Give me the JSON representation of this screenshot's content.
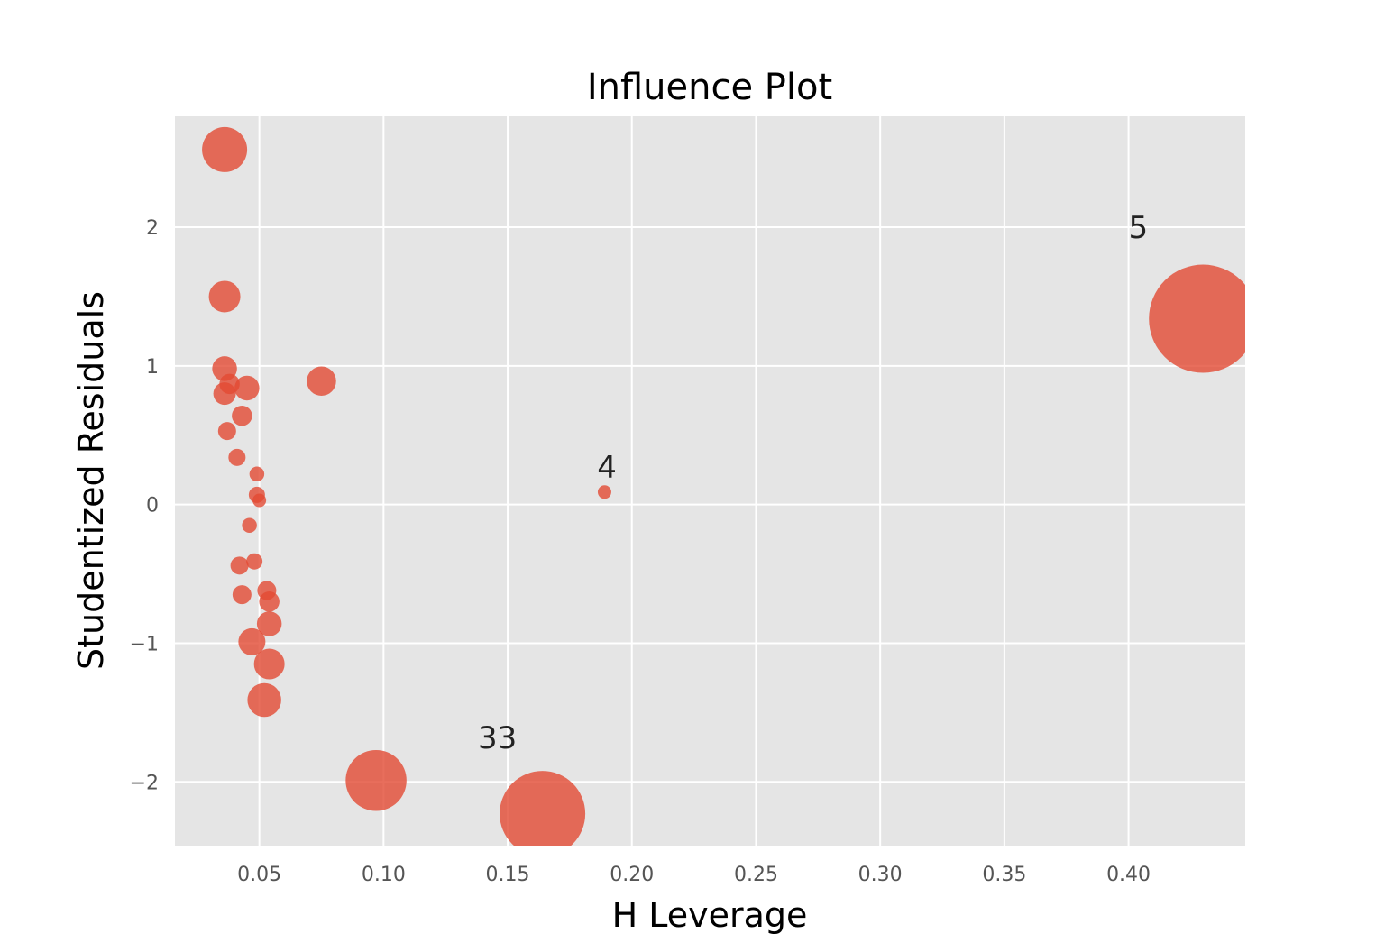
{
  "chart_data": {
    "type": "scatter",
    "title": "Influence Plot",
    "xlabel": "H Leverage",
    "ylabel": "Studentized Residuals",
    "xlim": [
      0.016,
      0.447
    ],
    "ylim": [
      -2.46,
      2.8
    ],
    "xticks": [
      0.05,
      0.1,
      0.15,
      0.2,
      0.25,
      0.3,
      0.35,
      0.4
    ],
    "xtick_labels": [
      "0.05",
      "0.10",
      "0.15",
      "0.20",
      "0.25",
      "0.30",
      "0.35",
      "0.40"
    ],
    "yticks": [
      -2,
      -1,
      0,
      1,
      2
    ],
    "ytick_labels": [
      "−2",
      "−1",
      "0",
      "1",
      "2"
    ],
    "grid": true,
    "colors": {
      "background": "#E5E5E5",
      "point": "#E24A33",
      "grid": "#FFFFFF"
    },
    "points": [
      {
        "x": 0.036,
        "y": 2.56,
        "size": 1.0
      },
      {
        "x": 0.036,
        "y": 1.5,
        "size": 0.7
      },
      {
        "x": 0.036,
        "y": 0.98,
        "size": 0.55
      },
      {
        "x": 0.038,
        "y": 0.87,
        "size": 0.45
      },
      {
        "x": 0.036,
        "y": 0.8,
        "size": 0.5
      },
      {
        "x": 0.045,
        "y": 0.84,
        "size": 0.55
      },
      {
        "x": 0.075,
        "y": 0.89,
        "size": 0.65
      },
      {
        "x": 0.043,
        "y": 0.64,
        "size": 0.45
      },
      {
        "x": 0.037,
        "y": 0.53,
        "size": 0.4
      },
      {
        "x": 0.041,
        "y": 0.34,
        "size": 0.38
      },
      {
        "x": 0.049,
        "y": 0.22,
        "size": 0.33
      },
      {
        "x": 0.049,
        "y": 0.07,
        "size": 0.36
      },
      {
        "x": 0.05,
        "y": 0.03,
        "size": 0.3
      },
      {
        "x": 0.046,
        "y": -0.15,
        "size": 0.33
      },
      {
        "x": 0.048,
        "y": -0.41,
        "size": 0.36
      },
      {
        "x": 0.042,
        "y": -0.44,
        "size": 0.4
      },
      {
        "x": 0.043,
        "y": -0.65,
        "size": 0.42
      },
      {
        "x": 0.053,
        "y": -0.62,
        "size": 0.42
      },
      {
        "x": 0.054,
        "y": -0.7,
        "size": 0.45
      },
      {
        "x": 0.054,
        "y": -0.86,
        "size": 0.55
      },
      {
        "x": 0.047,
        "y": -0.99,
        "size": 0.6
      },
      {
        "x": 0.054,
        "y": -1.15,
        "size": 0.68
      },
      {
        "x": 0.052,
        "y": -1.41,
        "size": 0.75
      },
      {
        "x": 0.189,
        "y": 0.09,
        "size": 0.3
      },
      {
        "x": 0.097,
        "y": -1.99,
        "size": 1.35
      },
      {
        "x": 0.164,
        "y": -2.23,
        "size": 1.9
      },
      {
        "x": 0.43,
        "y": 1.34,
        "size": 2.4
      }
    ],
    "annotations": [
      {
        "text": "5",
        "x": 0.4,
        "y": 2.0
      },
      {
        "text": "4",
        "x": 0.186,
        "y": 0.27
      },
      {
        "text": "33",
        "x": 0.138,
        "y": -1.68
      }
    ]
  }
}
